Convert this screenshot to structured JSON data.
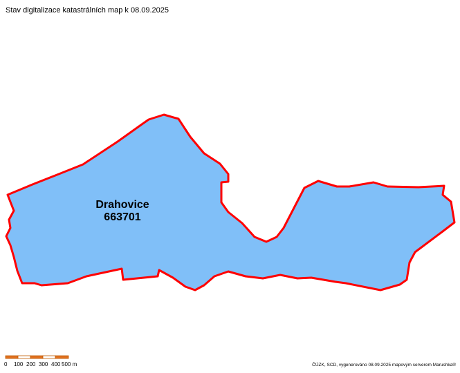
{
  "header": {
    "title": "Stav digitalizace katastrálních map k 08.09.2025"
  },
  "parcel": {
    "name": "Drahovice",
    "code": "663701"
  },
  "scale_bar": {
    "labels": [
      "0",
      "100",
      "200",
      "300",
      "400",
      "500 m"
    ]
  },
  "footer": {
    "attribution": "ČÚZK, SCD, vygenerováno 08.09.2025 mapovým serverem Marushka®"
  }
}
